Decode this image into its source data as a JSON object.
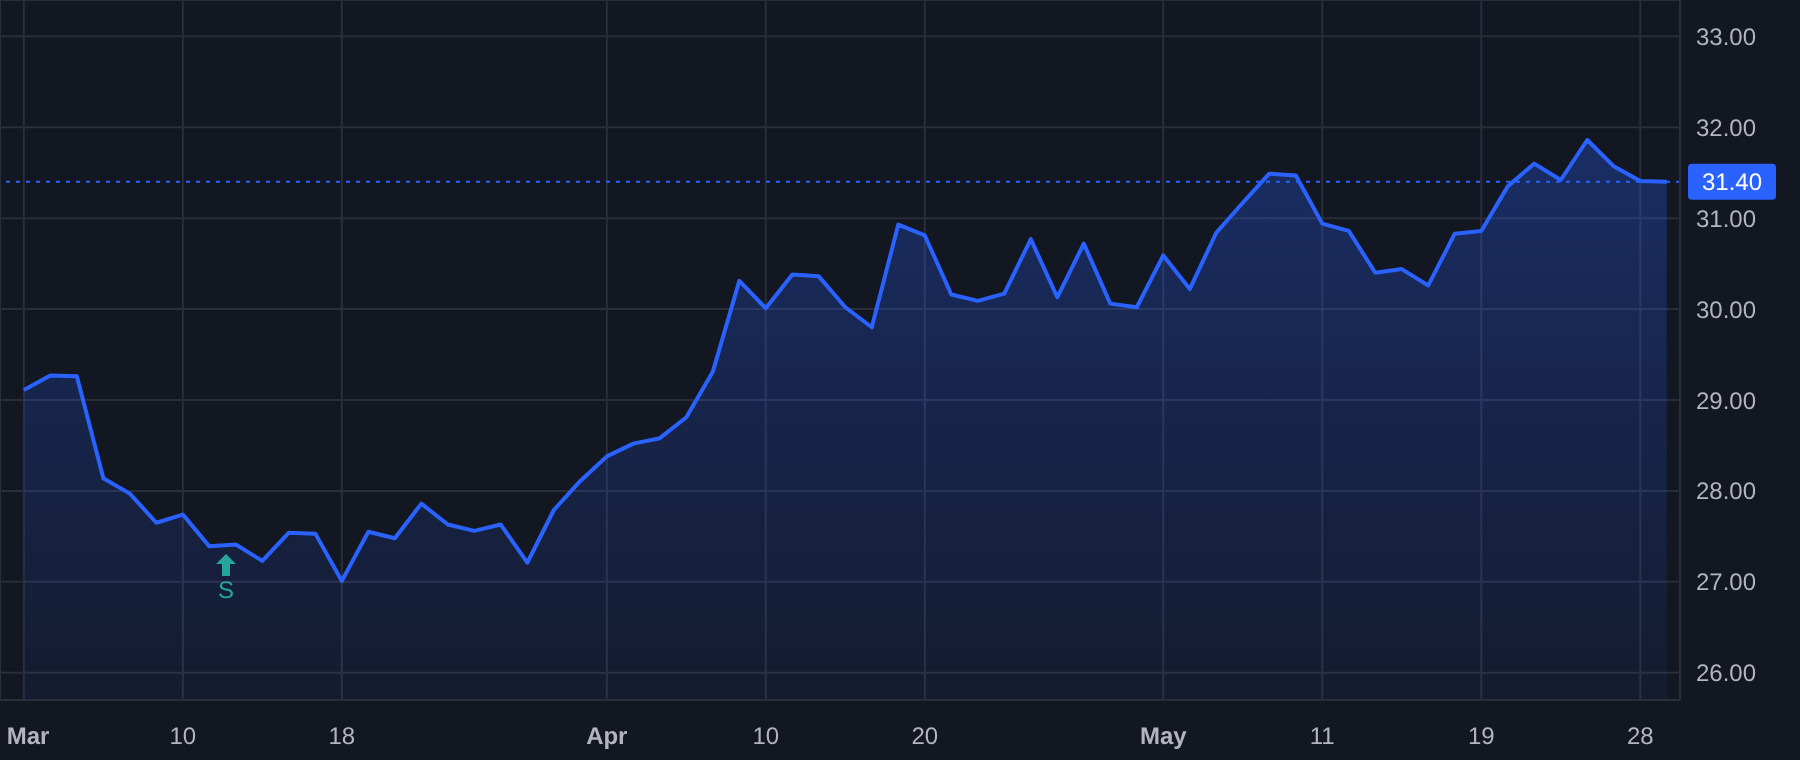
{
  "chart_data": {
    "type": "area",
    "categories": [
      "Mar",
      null,
      null,
      null,
      null,
      null,
      "10",
      null,
      null,
      null,
      null,
      null,
      "18",
      null,
      null,
      null,
      null,
      null,
      null,
      null,
      null,
      null,
      "Apr",
      null,
      null,
      null,
      null,
      null,
      "10",
      null,
      null,
      null,
      null,
      null,
      "20",
      null,
      null,
      null,
      null,
      null,
      null,
      null,
      null,
      "May",
      null,
      null,
      null,
      null,
      null,
      "11",
      null,
      null,
      null,
      null,
      null,
      "19",
      null,
      null,
      null,
      null,
      null,
      "28",
      null
    ],
    "series": [
      {
        "color": "#2962ff",
        "values": [
          29.11,
          29.27,
          29.26,
          28.14,
          27.97,
          27.65,
          27.74,
          27.39,
          27.41,
          27.23,
          27.54,
          27.53,
          27.01,
          27.55,
          27.48,
          27.86,
          27.63,
          27.56,
          27.63,
          27.21,
          27.79,
          28.11,
          28.38,
          28.52,
          28.58,
          28.81,
          29.31,
          30.31,
          30.01,
          30.38,
          30.36,
          30.02,
          29.8,
          30.93,
          30.81,
          30.16,
          30.09,
          30.17,
          30.77,
          30.13,
          30.72,
          30.06,
          30.02,
          30.59,
          30.22,
          30.84,
          31.17,
          31.49,
          31.47,
          30.94,
          30.86,
          30.4,
          30.44,
          30.26,
          30.83,
          30.86,
          31.35,
          31.6,
          31.42,
          31.86,
          31.57,
          31.41,
          31.4
        ]
      }
    ],
    "ylim": [
      25.7,
      33.4
    ],
    "yticks": [
      {
        "value": 26,
        "label": "26.00"
      },
      {
        "value": 27,
        "label": "27.00"
      },
      {
        "value": 28,
        "label": "28.00"
      },
      {
        "value": 29,
        "label": "29.00"
      },
      {
        "value": 30,
        "label": "30.00"
      },
      {
        "value": 31,
        "label": "31.00"
      },
      {
        "value": 32,
        "label": "32.00"
      },
      {
        "value": 33,
        "label": "33.00"
      }
    ],
    "ref_lines": [
      {
        "axis": "y",
        "value": 31.4,
        "label": "31.40",
        "color": "#2962ff",
        "line_style": "dotted"
      }
    ],
    "annotations": [
      "S"
    ],
    "grid": true,
    "marker": "none",
    "line_style": "solid"
  }
}
